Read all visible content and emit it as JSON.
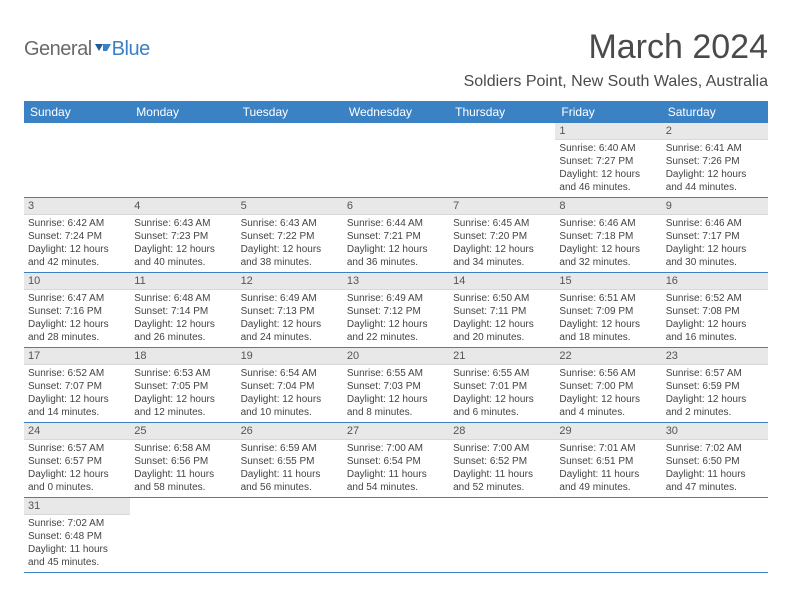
{
  "logo": {
    "general": "General",
    "blue": "Blue"
  },
  "title": "March 2024",
  "location": "Soldiers Point, New South Wales, Australia",
  "colors": {
    "header_bg": "#3b82c4",
    "header_text": "#ffffff",
    "daynum_bg": "#e8e8e8",
    "text": "#444444",
    "border": "#3b82c4"
  },
  "day_headers": [
    "Sunday",
    "Monday",
    "Tuesday",
    "Wednesday",
    "Thursday",
    "Friday",
    "Saturday"
  ],
  "weeks": [
    [
      {
        "empty": true
      },
      {
        "empty": true
      },
      {
        "empty": true
      },
      {
        "empty": true
      },
      {
        "empty": true
      },
      {
        "num": "1",
        "sunrise": "Sunrise: 6:40 AM",
        "sunset": "Sunset: 7:27 PM",
        "daylight": "Daylight: 12 hours and 46 minutes."
      },
      {
        "num": "2",
        "sunrise": "Sunrise: 6:41 AM",
        "sunset": "Sunset: 7:26 PM",
        "daylight": "Daylight: 12 hours and 44 minutes."
      }
    ],
    [
      {
        "num": "3",
        "sunrise": "Sunrise: 6:42 AM",
        "sunset": "Sunset: 7:24 PM",
        "daylight": "Daylight: 12 hours and 42 minutes."
      },
      {
        "num": "4",
        "sunrise": "Sunrise: 6:43 AM",
        "sunset": "Sunset: 7:23 PM",
        "daylight": "Daylight: 12 hours and 40 minutes."
      },
      {
        "num": "5",
        "sunrise": "Sunrise: 6:43 AM",
        "sunset": "Sunset: 7:22 PM",
        "daylight": "Daylight: 12 hours and 38 minutes."
      },
      {
        "num": "6",
        "sunrise": "Sunrise: 6:44 AM",
        "sunset": "Sunset: 7:21 PM",
        "daylight": "Daylight: 12 hours and 36 minutes."
      },
      {
        "num": "7",
        "sunrise": "Sunrise: 6:45 AM",
        "sunset": "Sunset: 7:20 PM",
        "daylight": "Daylight: 12 hours and 34 minutes."
      },
      {
        "num": "8",
        "sunrise": "Sunrise: 6:46 AM",
        "sunset": "Sunset: 7:18 PM",
        "daylight": "Daylight: 12 hours and 32 minutes."
      },
      {
        "num": "9",
        "sunrise": "Sunrise: 6:46 AM",
        "sunset": "Sunset: 7:17 PM",
        "daylight": "Daylight: 12 hours and 30 minutes."
      }
    ],
    [
      {
        "num": "10",
        "sunrise": "Sunrise: 6:47 AM",
        "sunset": "Sunset: 7:16 PM",
        "daylight": "Daylight: 12 hours and 28 minutes."
      },
      {
        "num": "11",
        "sunrise": "Sunrise: 6:48 AM",
        "sunset": "Sunset: 7:14 PM",
        "daylight": "Daylight: 12 hours and 26 minutes."
      },
      {
        "num": "12",
        "sunrise": "Sunrise: 6:49 AM",
        "sunset": "Sunset: 7:13 PM",
        "daylight": "Daylight: 12 hours and 24 minutes."
      },
      {
        "num": "13",
        "sunrise": "Sunrise: 6:49 AM",
        "sunset": "Sunset: 7:12 PM",
        "daylight": "Daylight: 12 hours and 22 minutes."
      },
      {
        "num": "14",
        "sunrise": "Sunrise: 6:50 AM",
        "sunset": "Sunset: 7:11 PM",
        "daylight": "Daylight: 12 hours and 20 minutes."
      },
      {
        "num": "15",
        "sunrise": "Sunrise: 6:51 AM",
        "sunset": "Sunset: 7:09 PM",
        "daylight": "Daylight: 12 hours and 18 minutes."
      },
      {
        "num": "16",
        "sunrise": "Sunrise: 6:52 AM",
        "sunset": "Sunset: 7:08 PM",
        "daylight": "Daylight: 12 hours and 16 minutes."
      }
    ],
    [
      {
        "num": "17",
        "sunrise": "Sunrise: 6:52 AM",
        "sunset": "Sunset: 7:07 PM",
        "daylight": "Daylight: 12 hours and 14 minutes."
      },
      {
        "num": "18",
        "sunrise": "Sunrise: 6:53 AM",
        "sunset": "Sunset: 7:05 PM",
        "daylight": "Daylight: 12 hours and 12 minutes."
      },
      {
        "num": "19",
        "sunrise": "Sunrise: 6:54 AM",
        "sunset": "Sunset: 7:04 PM",
        "daylight": "Daylight: 12 hours and 10 minutes."
      },
      {
        "num": "20",
        "sunrise": "Sunrise: 6:55 AM",
        "sunset": "Sunset: 7:03 PM",
        "daylight": "Daylight: 12 hours and 8 minutes."
      },
      {
        "num": "21",
        "sunrise": "Sunrise: 6:55 AM",
        "sunset": "Sunset: 7:01 PM",
        "daylight": "Daylight: 12 hours and 6 minutes."
      },
      {
        "num": "22",
        "sunrise": "Sunrise: 6:56 AM",
        "sunset": "Sunset: 7:00 PM",
        "daylight": "Daylight: 12 hours and 4 minutes."
      },
      {
        "num": "23",
        "sunrise": "Sunrise: 6:57 AM",
        "sunset": "Sunset: 6:59 PM",
        "daylight": "Daylight: 12 hours and 2 minutes."
      }
    ],
    [
      {
        "num": "24",
        "sunrise": "Sunrise: 6:57 AM",
        "sunset": "Sunset: 6:57 PM",
        "daylight": "Daylight: 12 hours and 0 minutes."
      },
      {
        "num": "25",
        "sunrise": "Sunrise: 6:58 AM",
        "sunset": "Sunset: 6:56 PM",
        "daylight": "Daylight: 11 hours and 58 minutes."
      },
      {
        "num": "26",
        "sunrise": "Sunrise: 6:59 AM",
        "sunset": "Sunset: 6:55 PM",
        "daylight": "Daylight: 11 hours and 56 minutes."
      },
      {
        "num": "27",
        "sunrise": "Sunrise: 7:00 AM",
        "sunset": "Sunset: 6:54 PM",
        "daylight": "Daylight: 11 hours and 54 minutes."
      },
      {
        "num": "28",
        "sunrise": "Sunrise: 7:00 AM",
        "sunset": "Sunset: 6:52 PM",
        "daylight": "Daylight: 11 hours and 52 minutes."
      },
      {
        "num": "29",
        "sunrise": "Sunrise: 7:01 AM",
        "sunset": "Sunset: 6:51 PM",
        "daylight": "Daylight: 11 hours and 49 minutes."
      },
      {
        "num": "30",
        "sunrise": "Sunrise: 7:02 AM",
        "sunset": "Sunset: 6:50 PM",
        "daylight": "Daylight: 11 hours and 47 minutes."
      }
    ],
    [
      {
        "num": "31",
        "sunrise": "Sunrise: 7:02 AM",
        "sunset": "Sunset: 6:48 PM",
        "daylight": "Daylight: 11 hours and 45 minutes."
      },
      {
        "empty": true
      },
      {
        "empty": true
      },
      {
        "empty": true
      },
      {
        "empty": true
      },
      {
        "empty": true
      },
      {
        "empty": true
      }
    ]
  ]
}
